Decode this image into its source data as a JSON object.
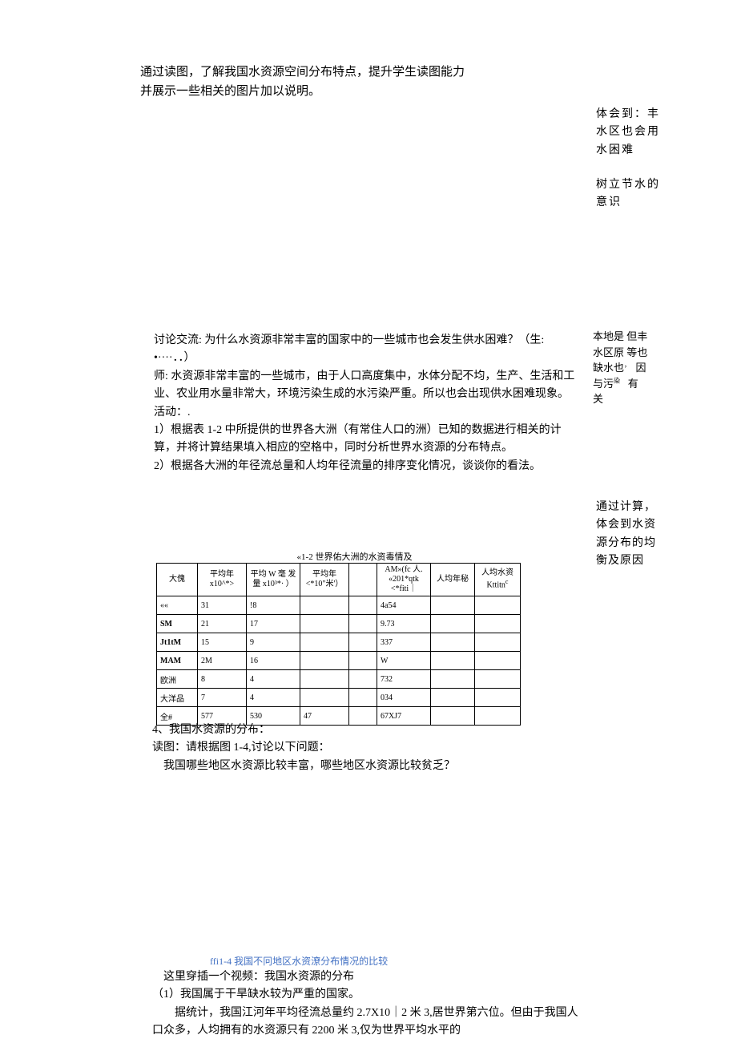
{
  "top": {
    "line1": "通过读图，了解我国水资源空间分布特点，提升学生读图能力",
    "line2": "并展示一些相关的图片加以说明。"
  },
  "side": {
    "r1a": "体会到：丰",
    "r1b": "水区也会用",
    "r1c": "水困难",
    "r2a": "树立节水的",
    "r2b": "意识",
    "note2": {
      "col1": [
        "本",
        "水",
        "缺",
        "与"
      ],
      "col2": [
        "地",
        "区",
        "水",
        "污"
      ],
      "col3": [
        "是",
        "原",
        "也",
        "染"
      ],
      "col4": [
        "但",
        "等",
        "，",
        ""
      ],
      "col5": [
        "丰",
        "也",
        "因",
        "有"
      ],
      "last": "关"
    },
    "calc1": "通过计算，",
    "calc2": "体会到水资",
    "calc3": "源分布的均",
    "calc4": "衡及原因"
  },
  "main": {
    "p1": "讨论交流: 为什么水资源非常丰富的国家中的一些城市也会发生供水困难？（生:",
    "p1b": "•····．．）",
    "p2": "师: 水资源非常丰富的一些城市，由于人口高度集中，水体分配不均，生产、生活和工业、农业用水量非常大，环境污染生成的水污染严重。所以也会出现供水困难现象。",
    "p3": "活动：.",
    "p4": "1）根据表 1-2 中所提供的世界各大洲（有常住人口的洲）已知的数据进行相关的计算，并将计算结果填入相应的空格中，同时分析世界水资源的分布特点。",
    "p5": "2）根据各大洲的年径流总量和人均年径流量的排序变化情况，谈谈你的看法。"
  },
  "table": {
    "title": "«1-2 世界佑大洲的水资毒情及",
    "headers": [
      "大傀",
      "平均年\nx10^*>",
      "平均 W 毫\n发量 x10³*·\n）",
      "平均年\n<*10\"米'）",
      "",
      "AM»(fc\n人. «201*qtk\n<*fiti｜",
      "人均年秘",
      "人均水资\nKttitn"
    ],
    "rows": [
      [
        "««",
        "31",
        "!8",
        "",
        "",
        "4a54",
        "",
        ""
      ],
      [
        "SM",
        "21",
        "17",
        "",
        "",
        "9.73",
        "",
        ""
      ],
      [
        "Jt1tM",
        "15",
        "9",
        "",
        "",
        "337",
        "",
        ""
      ],
      [
        "MAM",
        "2M",
        "16",
        "",
        "",
        "W",
        "",
        ""
      ],
      [
        "欧洲",
        "8",
        "4",
        "",
        "",
        "732",
        "",
        ""
      ],
      [
        "大洋品",
        "7",
        "4",
        "",
        "",
        "034",
        "",
        ""
      ],
      [
        "全#",
        "577",
        "530",
        "47",
        "",
        "67XJ7",
        "",
        ""
      ]
    ],
    "bold_rows": [
      1,
      2,
      3
    ]
  },
  "after": {
    "l1": "4、我国水资源的分布：",
    "l2": "读图：请根据图 1-4,讨论以下问题：",
    "l3": "　我国哪些地区水资源比较丰富，哪些地区水资源比较贫乏？"
  },
  "caption": "ffi1-4 我国不冋地区水资潦分布情况的比较",
  "bottom": {
    "l1": "　这里穿插一个视频：我国水资源的分布",
    "l2": "（1）我国属于干旱缺水较为严重的国家。",
    "l3": "　　据统计，我国江河年平均径流总量约 2.7X10｜2 米 3,居世界第六位。但由于我国人口众多，人均拥有的水资源只有 2200 米 3,仅为世界平均水平的"
  },
  "colors": {
    "text": "#000000",
    "caption": "#4472c4",
    "bg": "#ffffff",
    "border": "#000000"
  }
}
